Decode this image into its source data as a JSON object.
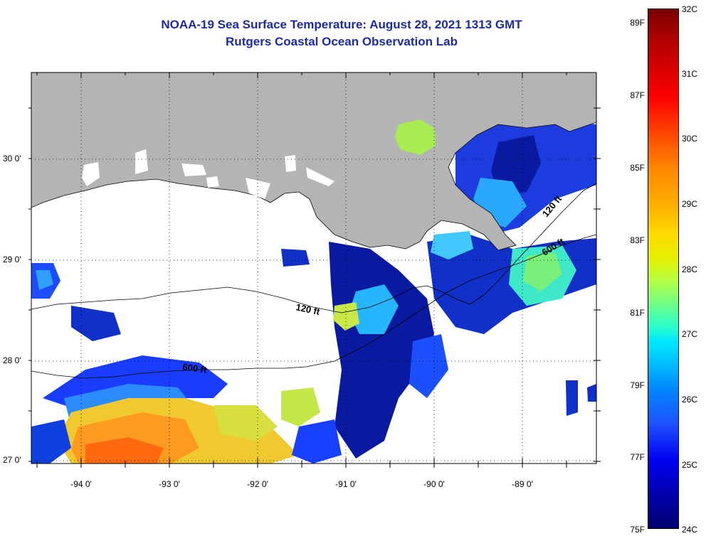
{
  "title_line1": "NOAA-19 Sea Surface Temperature:  August 28, 2021 1313 GMT",
  "title_line2": "Rutgers Coastal Ocean Observation Lab",
  "lat_labels": [
    "30 0'",
    "29 0'",
    "28 0'",
    "27 0'"
  ],
  "lon_labels": [
    "-94 0'",
    "-93 0'",
    "-92 0'",
    "-91 0'",
    "-90 0'",
    "-89 0'"
  ],
  "contour_labels": {
    "c120_west": "120 ft",
    "c120_east": "120 ft",
    "c600_west": "600 ft",
    "c600_east": "600 ft"
  },
  "colorbar": {
    "fahrenheit": [
      "89F",
      "87F",
      "85F",
      "83F",
      "81F",
      "79F",
      "77F",
      "75F"
    ],
    "celsius": [
      "32C",
      "31C",
      "30C",
      "29C",
      "28C",
      "27C",
      "26C",
      "25C",
      "24C"
    ]
  },
  "colors": {
    "land": "#b4b4b4",
    "title": "#1a2aa8",
    "cloud": "#ffffff",
    "frame": "#000000"
  }
}
